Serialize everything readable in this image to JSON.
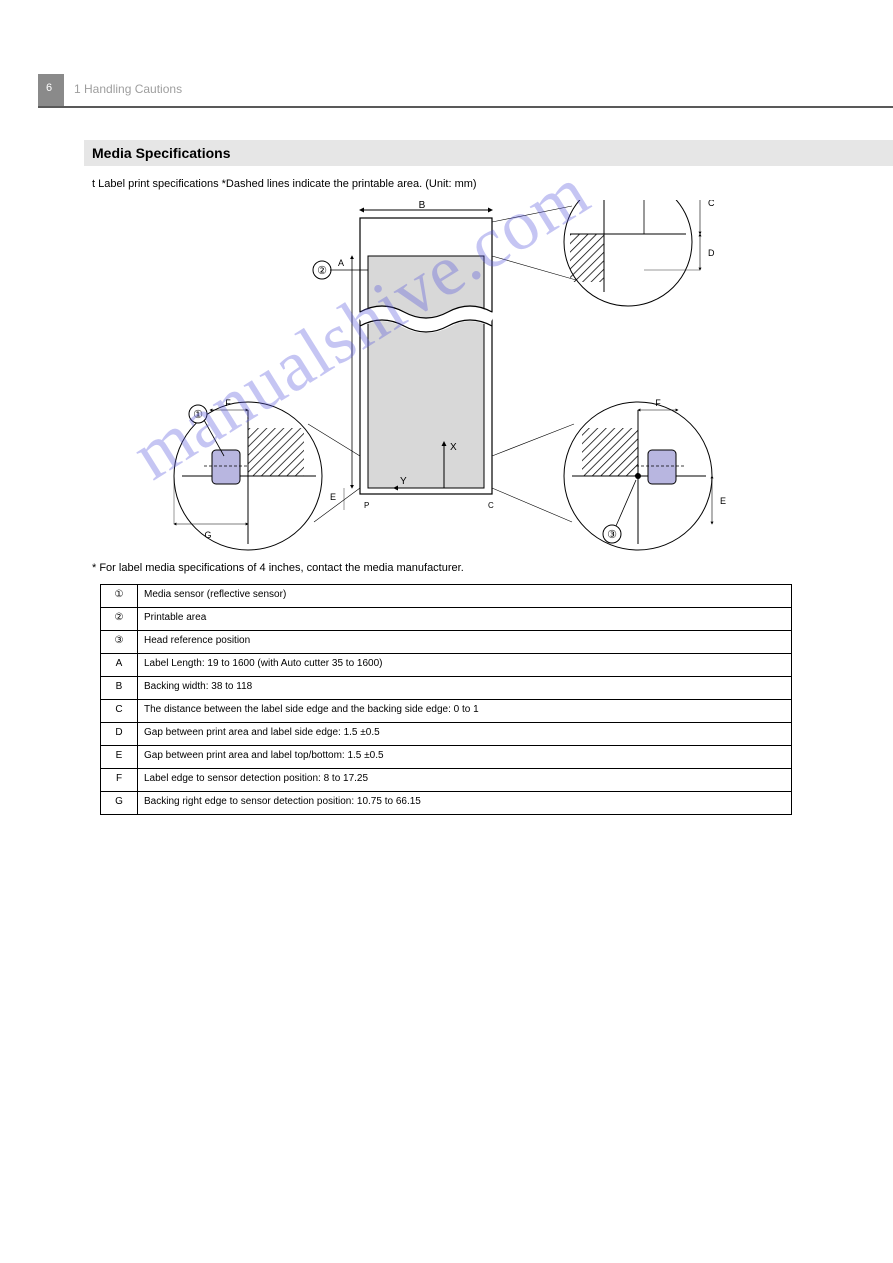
{
  "header": {
    "page_number": "6",
    "chapter": "1 Handling Cautions"
  },
  "section": {
    "title": "Media Specifications",
    "intro": "t Label print specifications *Dashed lines indicate the printable area. (Unit: mm)"
  },
  "diagram": {
    "type": "diagram",
    "background_color": "#ffffff",
    "media_fill_color": "#d8d8d8",
    "hatch_color": "#000000",
    "sensor_fill_color": "#b8b6e0",
    "stroke_color": "#000000",
    "text_color": "#000000",
    "stroke_width": 1.2,
    "axes": {
      "x_label": "X",
      "y_label": "Y"
    },
    "top_dimension_label": "B",
    "left_dim_label": "E",
    "right_dim_label": "E",
    "bottom_left_dim1": "F",
    "bottom_left_dim2": "G",
    "bottom_right_dim": "F",
    "vertical_dim_label": "A",
    "callout_top_dims": {
      "c": "C",
      "d": "D"
    },
    "markers": {
      "one": "①",
      "two": "②",
      "three": "③"
    },
    "small_labels": {
      "p": "P",
      "c_small": "C"
    }
  },
  "table": {
    "rows": [
      {
        "num": "①",
        "text": "Media sensor (reflective sensor)"
      },
      {
        "num": "②",
        "text": "Printable area"
      },
      {
        "num": "③",
        "text": "Head reference position"
      },
      {
        "num": "A",
        "text": "Label Length: 19 to 1600 (with Auto cutter 35 to 1600)"
      },
      {
        "num": "B",
        "text": "Backing width: 38 to 118"
      },
      {
        "num": "C",
        "text": "The distance between the label side edge and the backing side edge: 0 to 1"
      },
      {
        "num": "D",
        "text": "Gap between print area and label side edge: 1.5 ±0.5"
      },
      {
        "num": "E",
        "text": "Gap between print area and label top/bottom: 1.5 ±0.5"
      },
      {
        "num": "F",
        "text": "Label edge to sensor detection position: 8 to 17.25"
      },
      {
        "num": "G",
        "text": "Backing right edge to sensor detection position: 10.75 to 66.15"
      }
    ]
  },
  "note": "* For label media specifications of 4 inches, contact the media manufacturer.",
  "watermark": "manualshive.com"
}
